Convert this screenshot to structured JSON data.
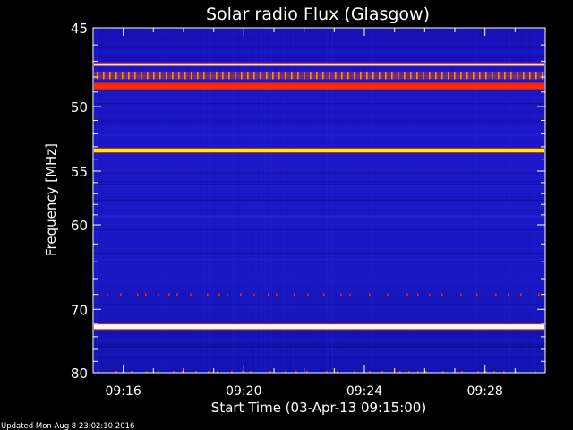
{
  "chart_data": {
    "type": "heatmap",
    "title": "Solar radio Flux (Glasgow)",
    "xlabel": "Start Time (03-Apr-13 09:15:00)",
    "ylabel": "Frequency [MHz]",
    "x_ticks": [
      "09:16",
      "09:20",
      "09:24",
      "09:28"
    ],
    "x_tick_minutes": [
      1,
      5,
      9,
      13
    ],
    "xlim_minutes": [
      0,
      15
    ],
    "y_ticks": [
      45,
      50,
      55,
      60,
      70,
      80
    ],
    "ylim": [
      45,
      80
    ],
    "y_scale": "reciprocal",
    "footer": "Updated Mon Aug  8 23:02:10 2016",
    "bands": [
      {
        "freq": 47.2,
        "width": 0.15,
        "color": "#e8e8ff",
        "style": "solid"
      },
      {
        "freq": 47.9,
        "width": 0.5,
        "color": "#ff8c00",
        "style": "ticks"
      },
      {
        "freq": 48.6,
        "width": 0.35,
        "color": "#ff2a00",
        "style": "solid"
      },
      {
        "freq": 53.3,
        "width": 0.3,
        "color": "#fff200",
        "style": "solid"
      },
      {
        "freq": 68.0,
        "width": 0.3,
        "color": "#ff2200",
        "style": "dots"
      },
      {
        "freq": 72.5,
        "width": 0.7,
        "color": "#fffde0",
        "style": "solid"
      },
      {
        "freq": 79.8,
        "width": 0.3,
        "color": "#e83000",
        "style": "dots"
      }
    ],
    "colors": {
      "background": "#000000",
      "low": "#1414c8",
      "high": "#ffff00",
      "axis": "#ffffff"
    }
  }
}
